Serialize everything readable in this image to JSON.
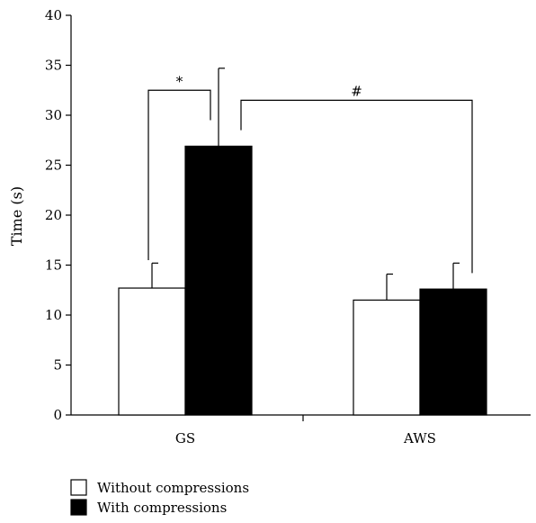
{
  "chart_data": {
    "type": "bar",
    "title": "",
    "xlabel": "",
    "ylabel": "Time (s)",
    "ylim": [
      0,
      40
    ],
    "yticks": [
      0,
      5,
      10,
      15,
      20,
      25,
      30,
      35,
      40
    ],
    "categories": [
      "GS",
      "AWS"
    ],
    "series": [
      {
        "name": "Without compressions",
        "fill": "#ffffff",
        "values": [
          12.7,
          11.5
        ],
        "error_upper": [
          15.2,
          14.1
        ]
      },
      {
        "name": "With compressions",
        "fill": "#000000",
        "values": [
          26.9,
          12.6
        ],
        "error_upper": [
          34.7,
          15.2
        ]
      }
    ],
    "annotations": [
      {
        "symbol": "*",
        "between": "GS Without compressions vs GS With compressions"
      },
      {
        "symbol": "#",
        "between": "GS With compressions vs AWS With compressions"
      }
    ],
    "legend_position": "bottom-left",
    "grid": false
  }
}
